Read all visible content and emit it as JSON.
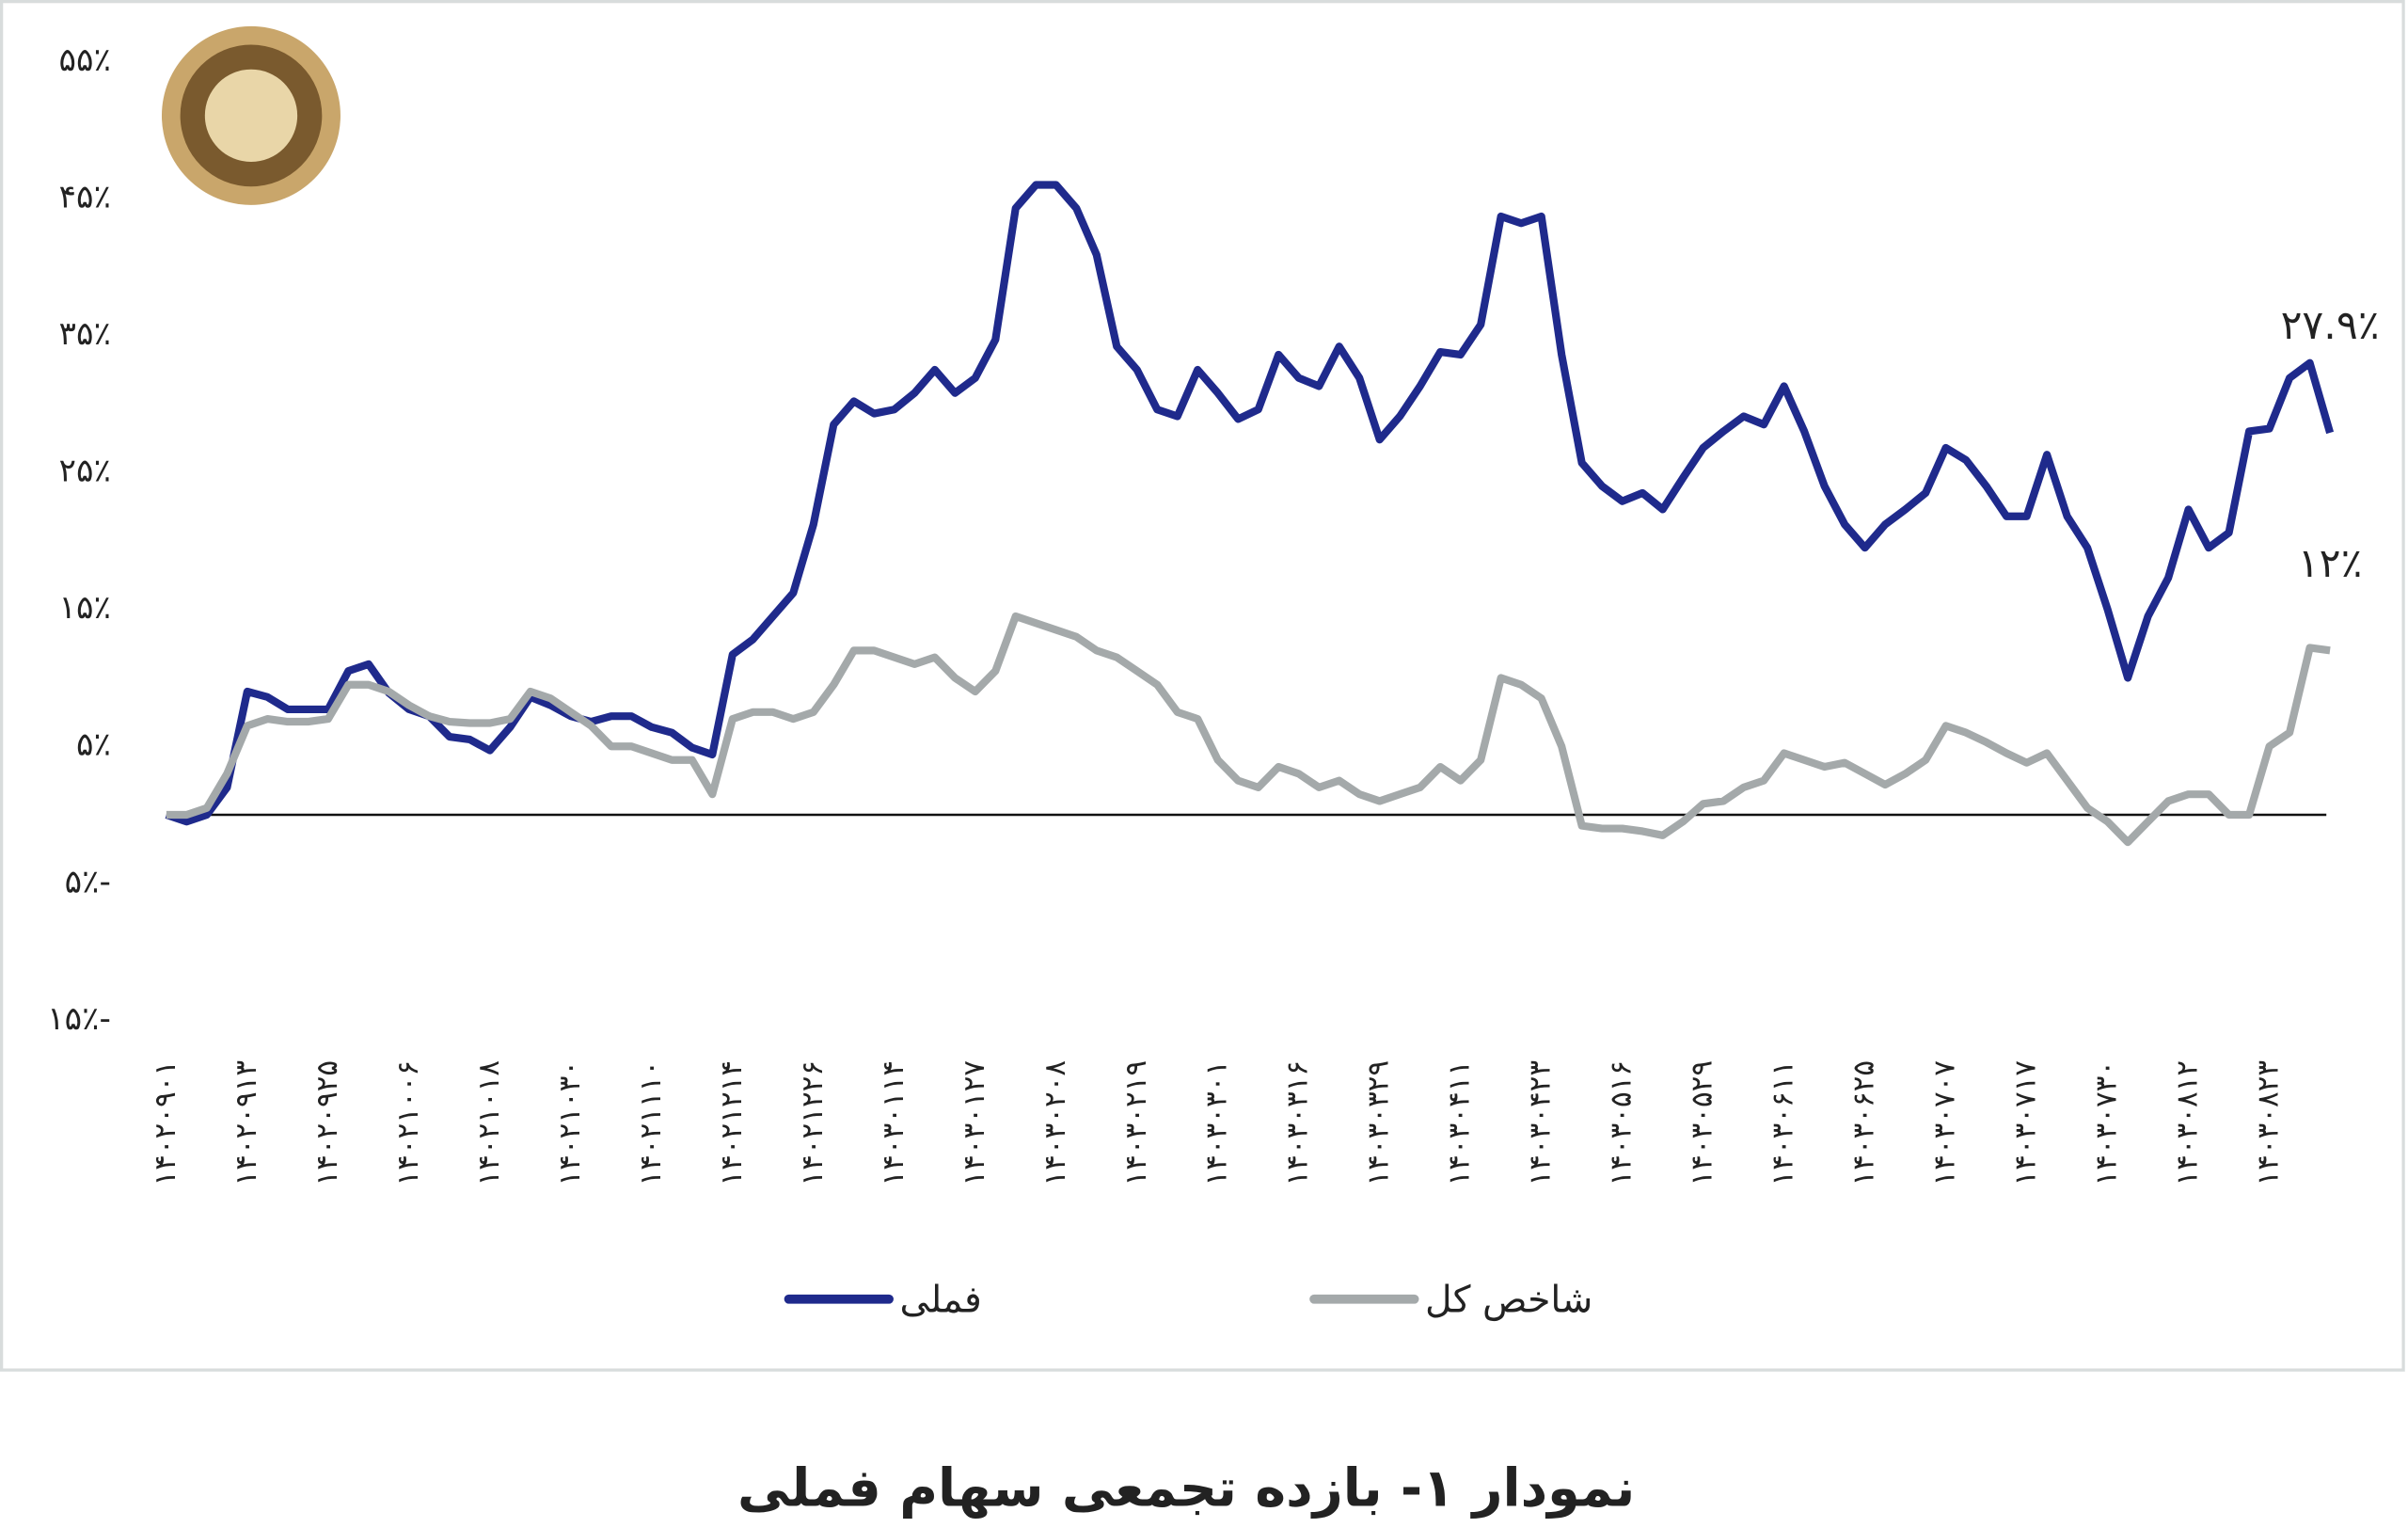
{
  "chart_data": {
    "type": "line",
    "title": "نمودار ۱- بازده تجمعی سهام فملی",
    "categories": [
      "۱۴۰۲۰۹۰۱",
      null,
      null,
      null,
      "۱۴۰۲۰۹۱۳",
      null,
      null,
      null,
      "۱۴۰۲۰۹۲۵",
      null,
      null,
      null,
      "۱۴۰۲۱۰۰۶",
      null,
      null,
      null,
      "۱۴۰۲۱۰۱۸",
      null,
      null,
      null,
      "۱۴۰۲۱۰۳۰",
      null,
      null,
      null,
      "۱۴۰۲۱۱۱۰",
      null,
      null,
      null,
      "۱۴۰۲۱۲۱۴",
      null,
      null,
      null,
      "۱۴۰۲۱۲۲۶",
      null,
      null,
      null,
      "۱۴۰۳۰۱۱۴",
      null,
      null,
      null,
      "۱۴۰۳۰۱۲۷",
      null,
      null,
      null,
      "۱۴۰۳۰۲۰۸",
      null,
      null,
      null,
      "۱۴۰۳۰۲۱۹",
      null,
      null,
      null,
      "۱۴۰۳۰۳۰۱",
      null,
      null,
      null,
      "۱۴۰۳۰۳۱۶",
      null,
      null,
      null,
      "۱۴۰۳۰۳۲۹",
      null,
      null,
      null,
      "۱۴۰۳۰۴۱۱",
      null,
      null,
      null,
      "۱۴۰۳۰۴۲۳",
      null,
      null,
      null,
      "۱۴۰۳۰۵۱۶",
      null,
      null,
      null,
      "۱۴۰۳۰۵۲۹",
      null,
      null,
      null,
      "۱۴۰۳۰۶۱۱",
      null,
      null,
      null,
      "۱۴۰۳۰۶۲۵",
      null,
      null,
      null,
      "۱۴۰۳۰۷۰۷",
      null,
      null,
      null,
      "۱۴۰۳۰۷۱۷",
      null,
      null,
      null,
      "۱۴۰۳۰۷۳۰",
      null,
      null,
      null,
      "۱۴۰۳۰۸۱۲",
      null,
      null,
      null,
      "۱۴۰۳۰۸۲۳",
      null,
      null,
      null
    ],
    "series": [
      {
        "name": "فملی",
        "color": "#1f2a8c",
        "values": [
          0,
          -0.5,
          0,
          2,
          9,
          8.6,
          7.7,
          7.7,
          7.7,
          10.5,
          11,
          8.9,
          7.7,
          7.2,
          5.7,
          5.5,
          4.7,
          6.4,
          8.6,
          8,
          7.2,
          6.8,
          7.2,
          7.2,
          6.4,
          6,
          4.9,
          4.4,
          11.7,
          12.8,
          14.5,
          16.2,
          21.2,
          28.5,
          30.2,
          29.3,
          29.6,
          30.8,
          32.5,
          30.8,
          31.9,
          34.7,
          44.3,
          46,
          46,
          44.3,
          40.9,
          34.2,
          32.5,
          29.6,
          29.1,
          32.5,
          30.8,
          28.9,
          29.6,
          33.6,
          31.9,
          31.3,
          34.2,
          31.9,
          27.4,
          29.1,
          31.3,
          33.8,
          33.6,
          35.8,
          43.7,
          43.2,
          43.7,
          33.6,
          25.7,
          24,
          22.9,
          23.5,
          22.3,
          24.6,
          26.8,
          28,
          29.1,
          28.5,
          31.3,
          28,
          24,
          21.2,
          19.5,
          21.2,
          22.3,
          23.5,
          26.8,
          25.9,
          24,
          21.8,
          21.8,
          26.3,
          21.8,
          19.5,
          15,
          10,
          14.5,
          17.3,
          22.3,
          19.5,
          20.6,
          28,
          28.2,
          31.9,
          33,
          27.9
        ],
        "value_labels": [
          null,
          null,
          null,
          null,
          null,
          null,
          null,
          null,
          null,
          null,
          null,
          null,
          null,
          null,
          null,
          null,
          null,
          null,
          null,
          null,
          null,
          null,
          null,
          null,
          null,
          null,
          null,
          null,
          null,
          null,
          null,
          null,
          null,
          null,
          null,
          null,
          null,
          null,
          null,
          null,
          null,
          null,
          null,
          null,
          null,
          null,
          null,
          null,
          null,
          null,
          null,
          null,
          null,
          null,
          null,
          null,
          null,
          null,
          null,
          null,
          null,
          null,
          null,
          null,
          null,
          null,
          null,
          null,
          null,
          null,
          null,
          null,
          null,
          null,
          null,
          null,
          null,
          null,
          null,
          null,
          null,
          null,
          null,
          null,
          null,
          null,
          null,
          null,
          null,
          null,
          null,
          null,
          null,
          null,
          null,
          null,
          null,
          null,
          null,
          null,
          null,
          null,
          null,
          null,
          null,
          null,
          null,
          "۲۷.۹٪"
        ]
      },
      {
        "name": "شاخص کل",
        "color": "#a4a9aa",
        "values": [
          0,
          0,
          0.5,
          3,
          6.5,
          7,
          6.8,
          6.8,
          7,
          9.5,
          9.5,
          9,
          8,
          7.2,
          6.8,
          6.7,
          6.7,
          7,
          9,
          8.5,
          7.5,
          6.5,
          5,
          5,
          4.5,
          4,
          4,
          1.5,
          7,
          7.5,
          7.5,
          7,
          7.5,
          9.5,
          12,
          12,
          11.5,
          11,
          11.5,
          10,
          9,
          10.5,
          14.5,
          14,
          13.5,
          13,
          12,
          11.5,
          10.5,
          9.5,
          7.5,
          7,
          4,
          2.5,
          2,
          3.5,
          3,
          2,
          2.5,
          1.5,
          1,
          1.5,
          2,
          3.5,
          2.5,
          4,
          10,
          9.5,
          8.5,
          5,
          -0.8,
          -1,
          -1,
          -1.2,
          -1.5,
          -0.5,
          0.8,
          1,
          2,
          2.5,
          4.5,
          4,
          3.5,
          3.8,
          3,
          2.2,
          3,
          4,
          6.5,
          6,
          5.3,
          4.5,
          3.8,
          4.5,
          2.5,
          0.5,
          -0.5,
          -2,
          -0.5,
          1,
          1.5,
          1.5,
          0,
          0,
          5,
          6,
          12.2,
          12
        ],
        "value_labels": [
          null,
          null,
          null,
          null,
          null,
          null,
          null,
          null,
          null,
          null,
          null,
          null,
          null,
          null,
          null,
          null,
          null,
          null,
          null,
          null,
          null,
          null,
          null,
          null,
          null,
          null,
          null,
          null,
          null,
          null,
          null,
          null,
          null,
          null,
          null,
          null,
          null,
          null,
          null,
          null,
          null,
          null,
          null,
          null,
          null,
          null,
          null,
          null,
          null,
          null,
          null,
          null,
          null,
          null,
          null,
          null,
          null,
          null,
          null,
          null,
          null,
          null,
          null,
          null,
          null,
          null,
          null,
          null,
          null,
          null,
          null,
          null,
          null,
          null,
          null,
          null,
          null,
          null,
          null,
          null,
          null,
          null,
          null,
          null,
          null,
          null,
          null,
          null,
          null,
          null,
          null,
          null,
          null,
          null,
          null,
          null,
          null,
          null,
          null,
          null,
          null,
          null,
          null,
          null,
          null,
          null,
          null,
          "۱۲٪"
        ]
      }
    ],
    "ylim": [
      -15,
      55
    ],
    "yticks": [
      {
        "value": 55,
        "label": "۵۵٪"
      },
      {
        "value": 45,
        "label": "۴۵٪"
      },
      {
        "value": 35,
        "label": "۳۵٪"
      },
      {
        "value": 25,
        "label": "۲۵٪"
      },
      {
        "value": 15,
        "label": "۱۵٪"
      },
      {
        "value": 5,
        "label": "۵٪"
      },
      {
        "value": -5,
        "label": "۵٪-"
      },
      {
        "value": -15,
        "label": "۱۵٪-"
      }
    ],
    "grid": false,
    "legend": "bottom"
  }
}
